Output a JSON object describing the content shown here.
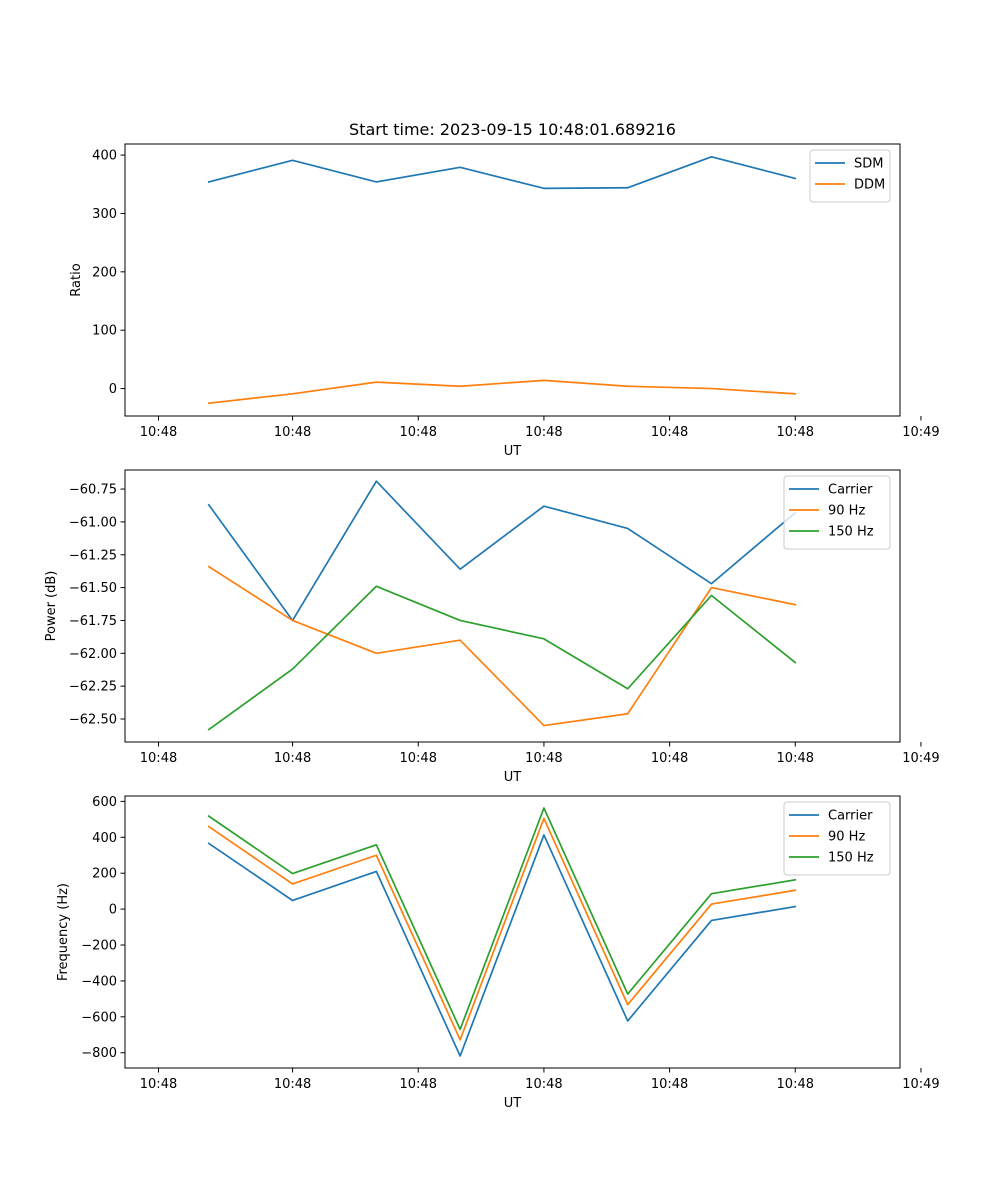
{
  "chart_data": [
    {
      "type": "line",
      "title": "Start time: 2023-09-15 10:48:01.689216",
      "xlabel": "UT",
      "ylabel": "Ratio",
      "x": [
        1,
        2,
        3,
        4,
        5,
        6,
        7,
        8
      ],
      "xlim": [
        0,
        9.25
      ],
      "xticks": [
        0.4,
        2,
        3.5,
        5,
        6.5,
        8,
        9.5
      ],
      "xtick_labels": [
        "10:48",
        "10:48",
        "10:48",
        "10:48",
        "10:48",
        "10:48",
        "10:49"
      ],
      "ylim": [
        -47,
        419
      ],
      "yticks": [
        0,
        100,
        200,
        300,
        400
      ],
      "ytick_labels": [
        "0",
        "100",
        "200",
        "300",
        "400"
      ],
      "legend_position": "top-right",
      "grid": false,
      "series": [
        {
          "name": "SDM",
          "color": "#1f77b4",
          "values": [
            354,
            391,
            354,
            379,
            343,
            344,
            397,
            360
          ]
        },
        {
          "name": "DDM",
          "color": "#ff7f0e",
          "values": [
            -25,
            -9,
            11,
            4,
            14,
            4,
            0,
            -9
          ]
        }
      ]
    },
    {
      "type": "line",
      "title": "",
      "xlabel": "UT",
      "ylabel": "Power (dB)",
      "x": [
        1,
        2,
        3,
        4,
        5,
        6,
        7,
        8
      ],
      "xlim": [
        0,
        9.25
      ],
      "xticks": [
        0.4,
        2,
        3.5,
        5,
        6.5,
        8,
        9.5
      ],
      "xtick_labels": [
        "10:48",
        "10:48",
        "10:48",
        "10:48",
        "10:48",
        "10:48",
        "10:49"
      ],
      "ylim": [
        -62.675,
        -60.605
      ],
      "yticks": [
        -62.5,
        -62.25,
        -62.0,
        -61.75,
        -61.5,
        -61.25,
        -61.0,
        -60.75
      ],
      "ytick_labels": [
        "−62.50",
        "−62.25",
        "−62.00",
        "−61.75",
        "−61.50",
        "−61.25",
        "−61.00",
        "−60.75"
      ],
      "legend_position": "top-right",
      "grid": false,
      "series": [
        {
          "name": "Carrier",
          "color": "#1f77b4",
          "values": [
            -60.87,
            -61.75,
            -60.69,
            -61.36,
            -60.88,
            -61.05,
            -61.47,
            -60.93
          ]
        },
        {
          "name": "90 Hz",
          "color": "#ff7f0e",
          "values": [
            -61.34,
            -61.75,
            -62.0,
            -61.9,
            -62.55,
            -62.46,
            -61.5,
            -61.63
          ]
        },
        {
          "name": "150 Hz",
          "color": "#2ca02c",
          "values": [
            -62.58,
            -62.12,
            -61.49,
            -61.75,
            -61.89,
            -62.27,
            -61.56,
            -62.07
          ]
        }
      ]
    },
    {
      "type": "line",
      "title": "",
      "xlabel": "UT",
      "ylabel": "Frequency (Hz)",
      "x": [
        1,
        2,
        3,
        4,
        5,
        6,
        7,
        8
      ],
      "xlim": [
        0,
        9.25
      ],
      "xticks": [
        0.4,
        2,
        3.5,
        5,
        6.5,
        8,
        9.5
      ],
      "xtick_labels": [
        "10:48",
        "10:48",
        "10:48",
        "10:48",
        "10:48",
        "10:48",
        "10:49"
      ],
      "ylim": [
        -885,
        630
      ],
      "yticks": [
        -800,
        -600,
        -400,
        -200,
        0,
        200,
        400,
        600
      ],
      "ytick_labels": [
        "−800",
        "−600",
        "−400",
        "−200",
        "0",
        "200",
        "400",
        "600"
      ],
      "legend_position": "top-right",
      "grid": false,
      "series": [
        {
          "name": "Carrier",
          "color": "#1f77b4",
          "values": [
            366,
            48,
            210,
            -818,
            413,
            -623,
            -63,
            14
          ]
        },
        {
          "name": "90 Hz",
          "color": "#ff7f0e",
          "values": [
            460,
            140,
            300,
            -728,
            505,
            -532,
            28,
            105
          ]
        },
        {
          "name": "150 Hz",
          "color": "#2ca02c",
          "values": [
            518,
            198,
            358,
            -670,
            563,
            -473,
            86,
            163
          ]
        }
      ]
    }
  ]
}
